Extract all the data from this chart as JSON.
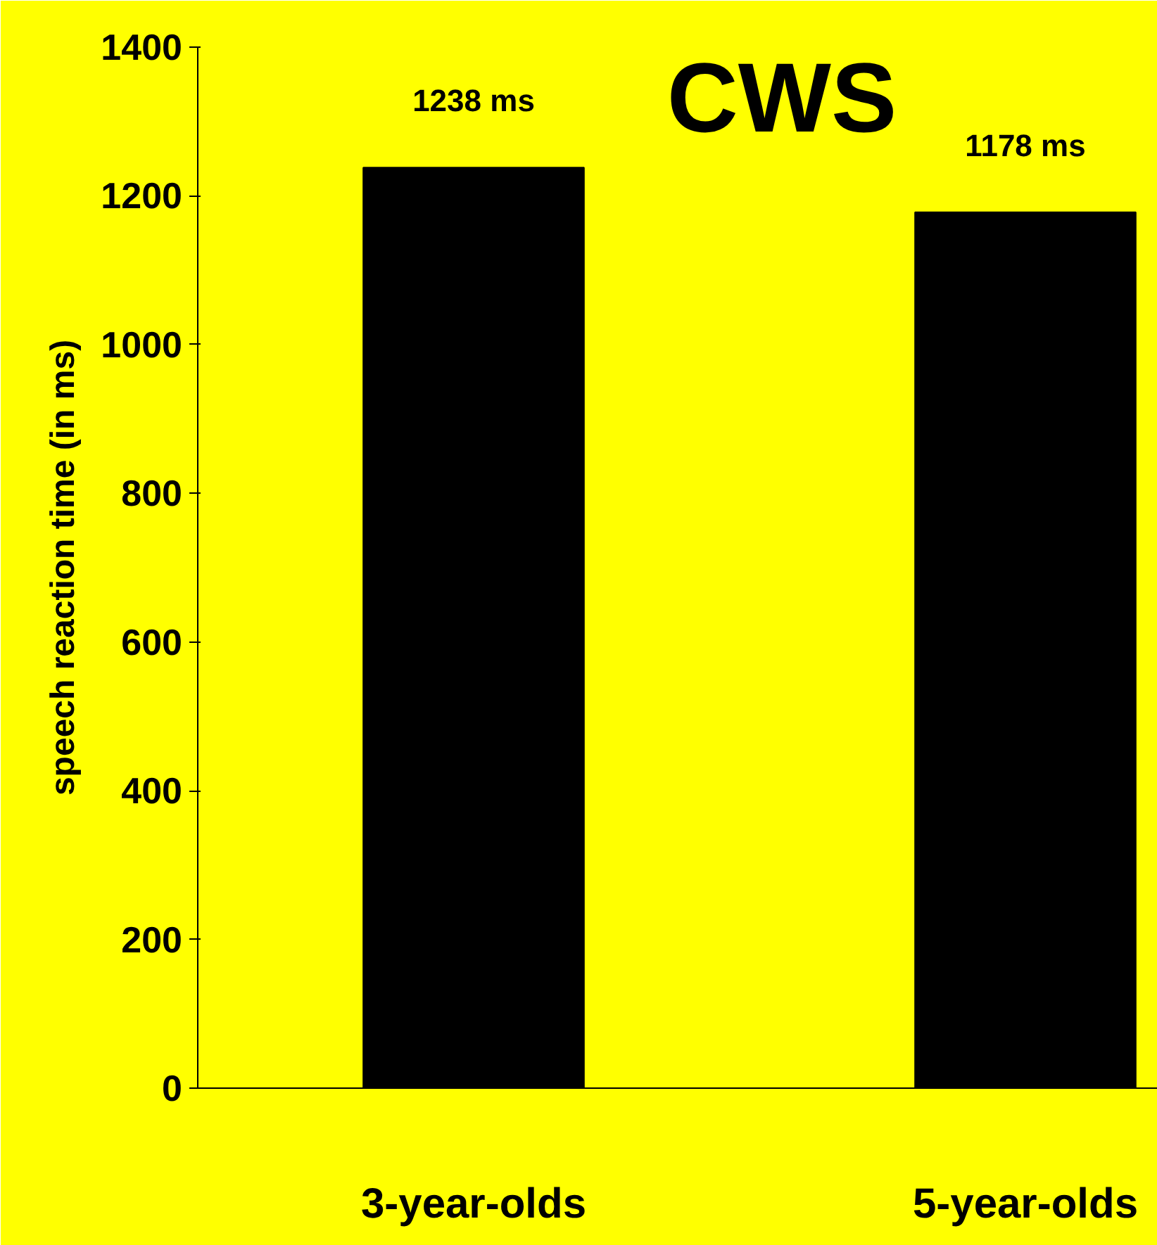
{
  "chart_data": {
    "type": "bar",
    "title": "CWS",
    "ylabel": "speech reaction time (in ms)",
    "categories": [
      "3-year-olds",
      "5-year-olds"
    ],
    "values": [
      1238,
      1178
    ],
    "color": "#000000",
    "value_labels": [
      "1238 ms",
      "1178 ms"
    ],
    "ylim": [
      0,
      1400
    ],
    "yticks": [
      0,
      200,
      400,
      600,
      800,
      1000,
      1200,
      1400
    ],
    "grid": false
  }
}
